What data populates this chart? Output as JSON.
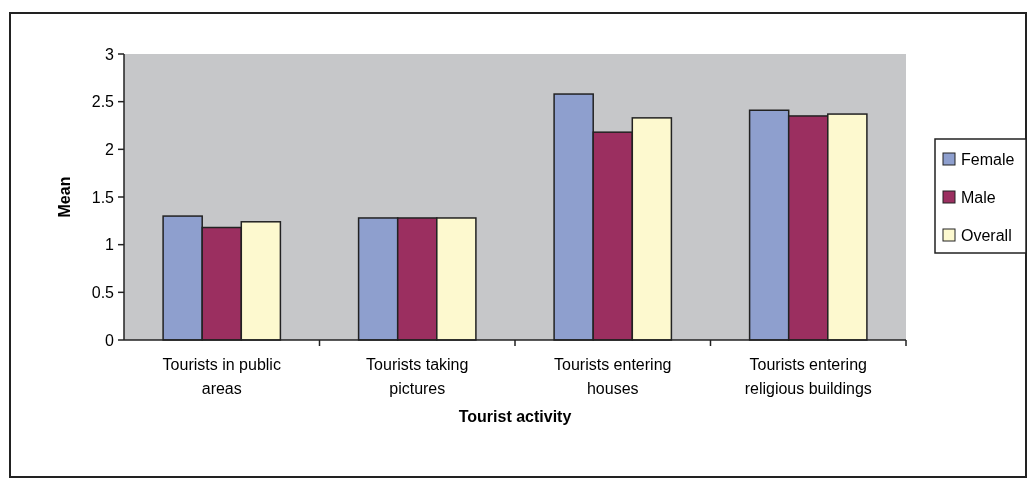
{
  "chart_data": {
    "type": "bar",
    "xlabel": "Tourist activity",
    "ylabel": "Mean",
    "categories": [
      "Tourists in public areas",
      "Tourists taking pictures",
      "Tourists entering houses",
      "Tourists entering religious buildings"
    ],
    "series": [
      {
        "name": "Female",
        "color": "#8e9fce",
        "values": [
          1.3,
          1.28,
          2.58,
          2.41
        ]
      },
      {
        "name": "Male",
        "color": "#9b2f60",
        "values": [
          1.18,
          1.28,
          2.18,
          2.35
        ]
      },
      {
        "name": "Overall",
        "color": "#fdf9cf",
        "values": [
          1.24,
          1.28,
          2.33,
          2.37
        ]
      }
    ],
    "ylim": [
      0,
      3
    ],
    "yticks": [
      0,
      0.5,
      1,
      1.5,
      2,
      2.5,
      3
    ],
    "grid": false,
    "legend": "right"
  }
}
